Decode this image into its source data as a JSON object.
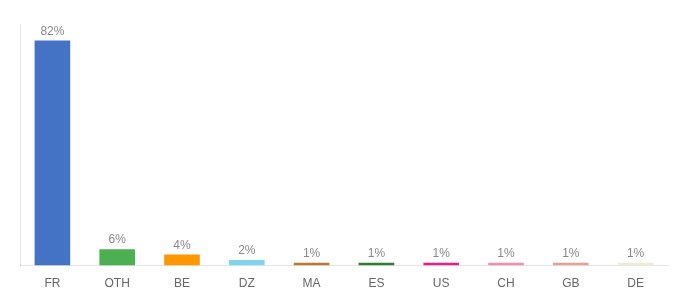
{
  "chart_data": {
    "type": "bar",
    "categories": [
      "FR",
      "OTH",
      "BE",
      "DZ",
      "MA",
      "ES",
      "US",
      "CH",
      "GB",
      "DE"
    ],
    "values": [
      82,
      6,
      4,
      2,
      1,
      1,
      1,
      1,
      1,
      1
    ],
    "value_labels": [
      "82%",
      "6%",
      "4%",
      "2%",
      "1%",
      "1%",
      "1%",
      "1%",
      "1%",
      "1%"
    ],
    "colors": [
      "#4472c4",
      "#4caf50",
      "#ff9800",
      "#80d4f0",
      "#c07830",
      "#2e7d32",
      "#e91e8c",
      "#f48fb1",
      "#e8a090",
      "#f0ead8"
    ],
    "ylim": [
      0,
      88
    ],
    "data_labels": true,
    "tick_labels": "x",
    "grid": false
  }
}
